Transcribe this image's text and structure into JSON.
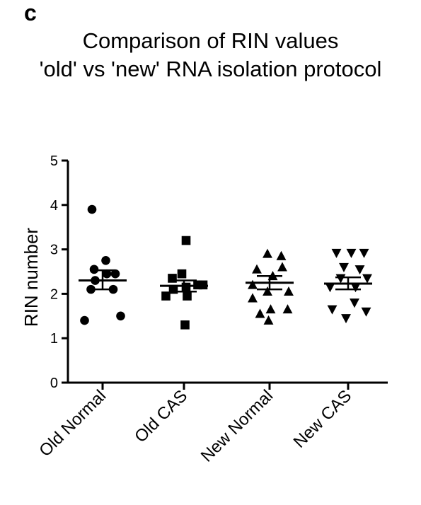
{
  "panel_label": "c",
  "chart_data": {
    "type": "scatter",
    "title_lines": [
      "Comparison of RIN values",
      "'old' vs 'new' RNA isolation protocol"
    ],
    "xlabel": "",
    "ylabel": "RIN number",
    "ylim": [
      0,
      5
    ],
    "yticks": [
      0,
      1,
      2,
      3,
      4,
      5
    ],
    "categories": [
      "Old Normal",
      "Old CAS",
      "New Normal",
      "New CAS"
    ],
    "series": [
      {
        "marker": "circle",
        "points": [
          {
            "dx": -0.5,
            "y": 3.9
          },
          {
            "dx": -0.4,
            "y": 2.55
          },
          {
            "dx": 0.15,
            "y": 2.75
          },
          {
            "dx": 0.2,
            "y": 2.45
          },
          {
            "dx": -0.35,
            "y": 2.3
          },
          {
            "dx": 0.6,
            "y": 2.45
          },
          {
            "dx": -0.55,
            "y": 2.1
          },
          {
            "dx": 0.5,
            "y": 2.1
          },
          {
            "dx": -0.85,
            "y": 1.4
          },
          {
            "dx": 0.85,
            "y": 1.5
          }
        ],
        "mean": 2.3,
        "sem_low": 2.1,
        "sem_high": 2.53
      },
      {
        "marker": "square",
        "points": [
          {
            "dx": 0.1,
            "y": 3.2
          },
          {
            "dx": -0.55,
            "y": 2.35
          },
          {
            "dx": -0.1,
            "y": 2.45
          },
          {
            "dx": 0.65,
            "y": 2.2
          },
          {
            "dx": -0.5,
            "y": 2.1
          },
          {
            "dx": 0.1,
            "y": 2.15
          },
          {
            "dx": 0.9,
            "y": 2.2
          },
          {
            "dx": -0.85,
            "y": 1.95
          },
          {
            "dx": 0.15,
            "y": 1.95
          },
          {
            "dx": 0.05,
            "y": 1.3
          }
        ],
        "mean": 2.18,
        "sem_low": 2.05,
        "sem_high": 2.3
      },
      {
        "marker": "triangle-up",
        "points": [
          {
            "dx": -0.1,
            "y": 2.9
          },
          {
            "dx": 0.55,
            "y": 2.85
          },
          {
            "dx": 0.6,
            "y": 2.6
          },
          {
            "dx": -0.6,
            "y": 2.55
          },
          {
            "dx": 0.15,
            "y": 2.4
          },
          {
            "dx": -0.8,
            "y": 2.2
          },
          {
            "dx": 0.9,
            "y": 2.05
          },
          {
            "dx": -0.1,
            "y": 2.05
          },
          {
            "dx": -0.8,
            "y": 1.9
          },
          {
            "dx": 0.05,
            "y": 1.65
          },
          {
            "dx": 0.85,
            "y": 1.65
          },
          {
            "dx": -0.45,
            "y": 1.55
          },
          {
            "dx": -0.05,
            "y": 1.4
          }
        ],
        "mean": 2.25,
        "sem_low": 2.1,
        "sem_high": 2.4
      },
      {
        "marker": "triangle-down",
        "points": [
          {
            "dx": -0.55,
            "y": 2.92
          },
          {
            "dx": 0.15,
            "y": 2.92
          },
          {
            "dx": 0.75,
            "y": 2.92
          },
          {
            "dx": -0.2,
            "y": 2.6
          },
          {
            "dx": 0.55,
            "y": 2.55
          },
          {
            "dx": 0.9,
            "y": 2.35
          },
          {
            "dx": -0.35,
            "y": 2.35
          },
          {
            "dx": -0.85,
            "y": 2.15
          },
          {
            "dx": 0.35,
            "y": 2.15
          },
          {
            "dx": -0.75,
            "y": 1.65
          },
          {
            "dx": 0.3,
            "y": 1.8
          },
          {
            "dx": 0.85,
            "y": 1.6
          },
          {
            "dx": -0.1,
            "y": 1.45
          }
        ],
        "mean": 2.23,
        "sem_low": 2.1,
        "sem_high": 2.37
      }
    ]
  }
}
